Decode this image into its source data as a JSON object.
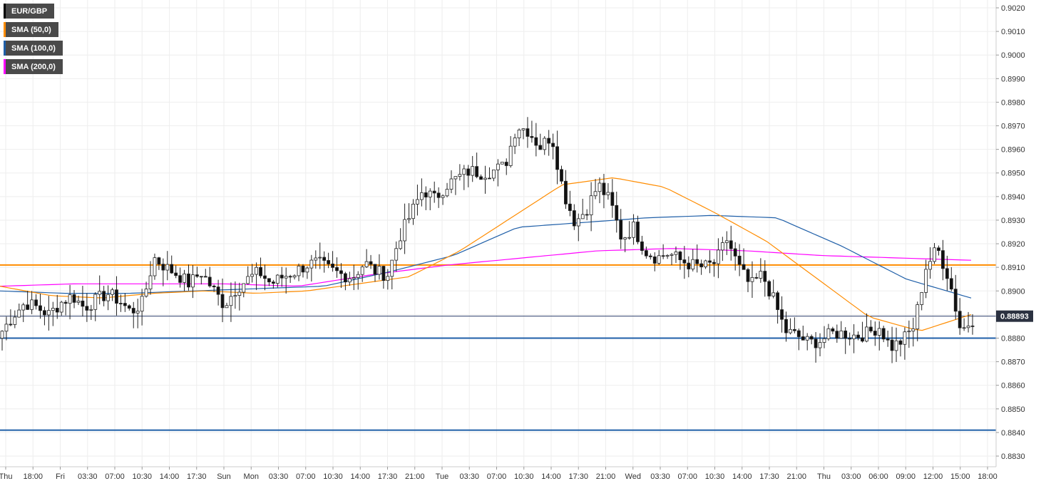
{
  "chart_data": {
    "type": "candlestick",
    "symbol": "EUR/GBP",
    "legend": [
      {
        "label": "EUR/GBP",
        "color": "#000000"
      },
      {
        "label": "SMA (50,0)",
        "color": "#ff8c00"
      },
      {
        "label": "SMA (100,0)",
        "color": "#1f5fa8"
      },
      {
        "label": "SMA (200,0)",
        "color": "#ff00ff"
      }
    ],
    "ylim": [
      0.8825,
      0.9025
    ],
    "y_ticks": [
      "0.9020",
      "0.9010",
      "0.9000",
      "0.8990",
      "0.8980",
      "0.8970",
      "0.8960",
      "0.8950",
      "0.8940",
      "0.8930",
      "0.8920",
      "0.8910",
      "0.8900",
      "0.8890",
      "0.8880",
      "0.8870",
      "0.8860",
      "0.8850",
      "0.8840",
      "0.8830"
    ],
    "x_ticks": [
      "Thu",
      "18:00",
      "Fri",
      "03:30",
      "07:00",
      "10:30",
      "14:00",
      "17:30",
      "Sun",
      "Mon",
      "03:30",
      "07:00",
      "10:30",
      "14:00",
      "17:30",
      "21:00",
      "Tue",
      "03:30",
      "07:00",
      "10:30",
      "14:00",
      "17:30",
      "21:00",
      "Wed",
      "03:30",
      "07:00",
      "10:30",
      "14:00",
      "17:30",
      "21:00",
      "Thu",
      "03:00",
      "06:00",
      "09:00",
      "12:00",
      "15:00",
      "18:00"
    ],
    "current_price": "0.88893",
    "horizontal_levels": [
      {
        "value": 0.8911,
        "color": "#ff8c00"
      },
      {
        "value": 0.888,
        "color": "#1f5fa8"
      },
      {
        "value": 0.8841,
        "color": "#1f5fa8"
      }
    ],
    "grid": true,
    "close_anchors": [
      0.8883,
      0.889,
      0.8895,
      0.8893,
      0.889,
      0.8895,
      0.8898,
      0.8893,
      0.8896,
      0.8899,
      0.8896,
      0.8891,
      0.8895,
      0.8914,
      0.891,
      0.8907,
      0.8903,
      0.8908,
      0.8901,
      0.8894,
      0.8901,
      0.8905,
      0.8908,
      0.8903,
      0.8906,
      0.8908,
      0.8911,
      0.8912,
      0.8909,
      0.8907,
      0.8906,
      0.8912,
      0.8908,
      0.8907,
      0.8923,
      0.8933,
      0.8943,
      0.8939,
      0.8945,
      0.8948,
      0.8951,
      0.895,
      0.8951,
      0.8953,
      0.897,
      0.8968,
      0.8961,
      0.8966,
      0.8942,
      0.8929,
      0.8935,
      0.8945,
      0.8938,
      0.8922,
      0.8927,
      0.8917,
      0.8914,
      0.8916,
      0.8913,
      0.8911,
      0.891,
      0.8912,
      0.8922,
      0.891,
      0.8902,
      0.8907,
      0.8896,
      0.8883,
      0.8881,
      0.8878,
      0.8879,
      0.8882,
      0.8882,
      0.8881,
      0.8882,
      0.8885,
      0.8876,
      0.8879,
      0.8885,
      0.891,
      0.8918,
      0.8905,
      0.8883,
      0.8888
    ],
    "sma50_anchors": [
      0.8902,
      0.8898,
      0.8897,
      0.8899,
      0.89,
      0.8899,
      0.89,
      0.8903,
      0.8906,
      0.8917,
      0.8931,
      0.8945,
      0.8948,
      0.8944,
      0.8933,
      0.8921,
      0.8905,
      0.8889,
      0.8883,
      0.889
    ],
    "sma100_anchors": [
      0.89,
      0.8899,
      0.8899,
      0.89,
      0.8901,
      0.8902,
      0.8908,
      0.8915,
      0.8927,
      0.8929,
      0.8931,
      0.8932,
      0.8931,
      0.8919,
      0.8905,
      0.8897
    ],
    "sma200_anchors": [
      0.8902,
      0.8903,
      0.8903,
      0.8903,
      0.8902,
      0.8907,
      0.8911,
      0.8914,
      0.8917,
      0.8918,
      0.8917,
      0.8915,
      0.8914,
      0.8913
    ]
  }
}
